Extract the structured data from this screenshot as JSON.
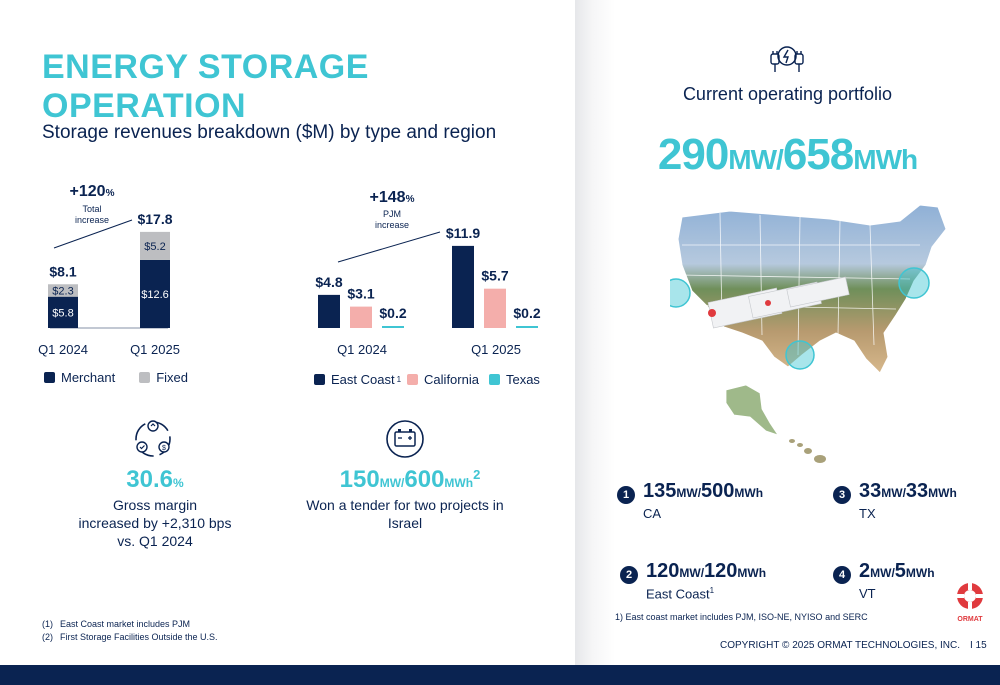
{
  "title": "ENERGY STORAGE OPERATION",
  "subtitle": "Storage revenues breakdown ($M) by type and region",
  "chart_data": [
    {
      "type": "bar",
      "stacked": true,
      "categories": [
        "Q1 2024",
        "Q1 2025"
      ],
      "series": [
        {
          "name": "Merchant",
          "values": [
            5.8,
            12.6
          ],
          "labels": [
            "$5.8",
            "$12.6"
          ],
          "color": "#0a2351"
        },
        {
          "name": "Fixed",
          "values": [
            2.3,
            5.2
          ],
          "labels": [
            "$2.3",
            "$5.2"
          ],
          "color": "#bdbec1"
        }
      ],
      "totals": [
        "$8.1",
        "$17.8"
      ],
      "annotation": {
        "value": "+120",
        "unit": "%",
        "line1": "Total",
        "line2": "increase"
      }
    },
    {
      "type": "bar",
      "categories": [
        "Q1 2024",
        "Q1 2025"
      ],
      "series": [
        {
          "name": "East Coast",
          "values": [
            4.8,
            11.9
          ],
          "labels": [
            "$4.8",
            "$11.9"
          ],
          "color": "#0a2351"
        },
        {
          "name": "California",
          "values": [
            3.1,
            5.7
          ],
          "labels": [
            "$3.1",
            "$5.7"
          ],
          "color": "#f4aeab"
        },
        {
          "name": "Texas",
          "values": [
            0.2,
            0.2
          ],
          "labels": [
            "$0.2",
            "$0.2"
          ],
          "color": "#3fc5d3"
        }
      ],
      "legend_sup": "1",
      "annotation": {
        "value": "+148",
        "unit": "%",
        "line1": "PJM",
        "line2": "increase"
      }
    }
  ],
  "kpis": {
    "gross_margin": {
      "value": "30.6",
      "unit": "%",
      "desc1": "Gross margin",
      "desc2": "increased by +2,310 bps",
      "desc3": "vs. Q1 2024",
      "icon": "profit-cycle-icon"
    },
    "tender": {
      "value1": "150",
      "unit1": "MW/",
      "value2": "600",
      "unit2": "MWh",
      "sup": "2",
      "desc1": "Won a tender for two projects in",
      "desc2": "Israel",
      "icon": "battery-icon"
    }
  },
  "footnotes": [
    {
      "n": "(1)",
      "text": "East Coast market includes PJM"
    },
    {
      "n": "(2)",
      "text": "First Storage Facilities Outside the U.S."
    }
  ],
  "portfolio": {
    "icon": "plug-icon",
    "title": "Current operating portfolio",
    "mw": "290",
    "mw_unit": "MW/",
    "mwh": "658",
    "mwh_unit": "MWh"
  },
  "sites": [
    {
      "n": "1",
      "mw": "135",
      "mwh": "500",
      "region": "CA",
      "sup": ""
    },
    {
      "n": "3",
      "mw": "33",
      "mwh": "33",
      "region": "TX",
      "sup": ""
    },
    {
      "n": "2",
      "mw": "120",
      "mwh": "120",
      "region": "East Coast",
      "sup": "1"
    },
    {
      "n": "4",
      "mw": "2",
      "mwh": "5",
      "region": "VT",
      "sup": ""
    }
  ],
  "units": {
    "mw": "MW/",
    "mwh": "MWh"
  },
  "east_coast_note": "1) East coast market includes PJM, ISO-NE, NYISO and SERC",
  "copyright": "COPYRIGHT © 2025 ORMAT TECHNOLOGIES, INC.",
  "page_number": "I   15",
  "logo_text": "ORMAT",
  "colors": {
    "navy": "#0a2351",
    "teal": "#3fc5d3",
    "grey": "#bdbec1",
    "pink": "#f4aeab",
    "red": "#e03a3e"
  }
}
